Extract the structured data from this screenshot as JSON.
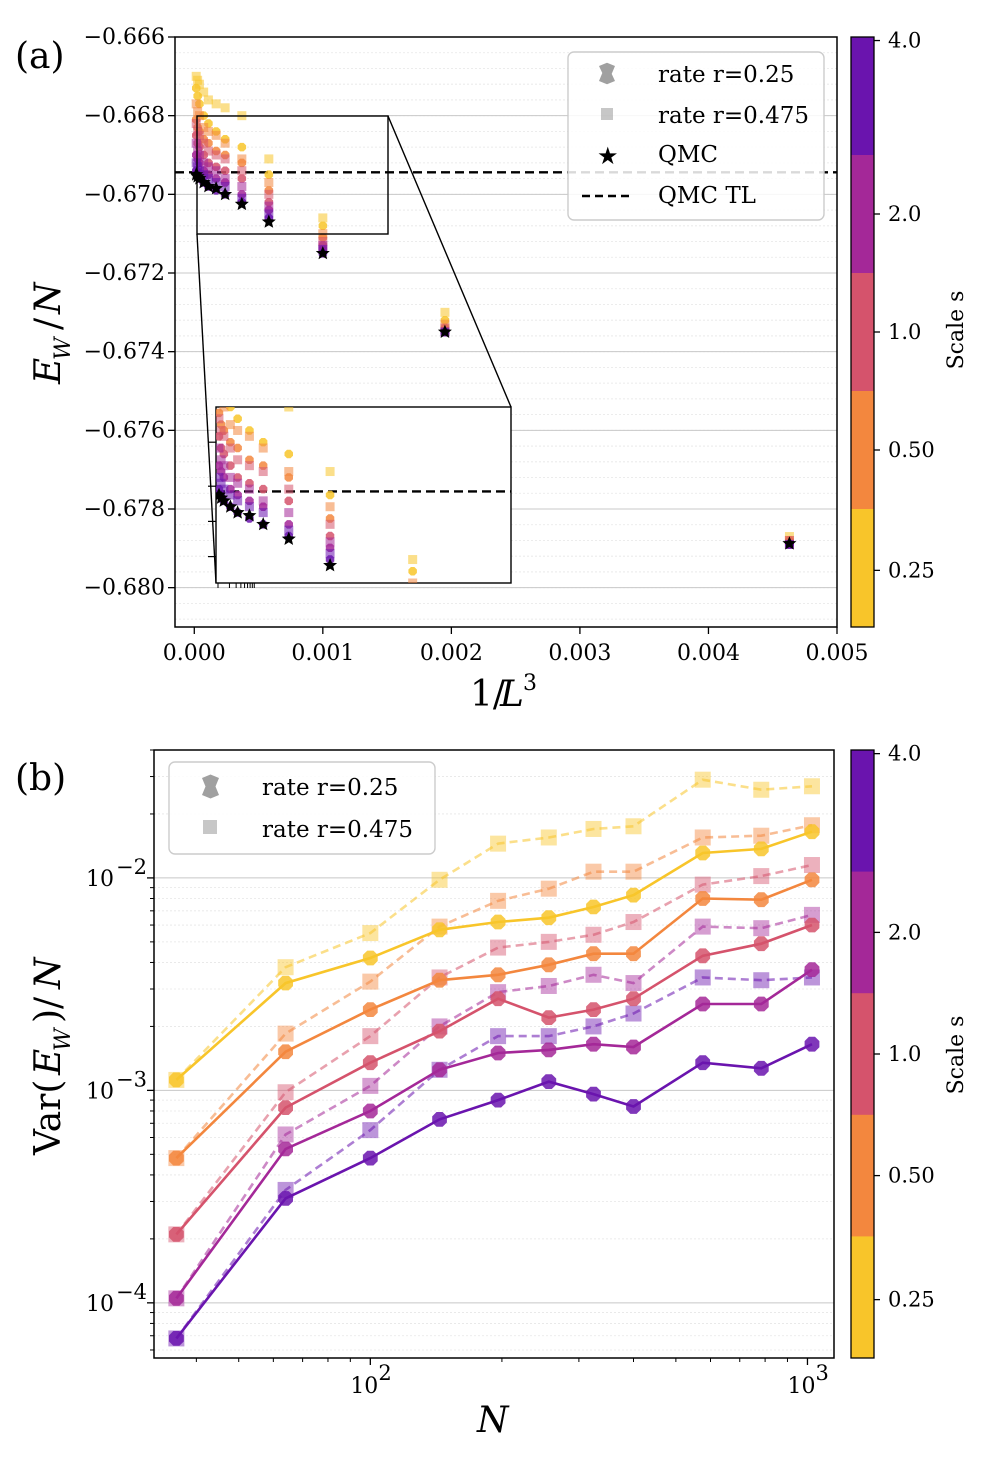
{
  "colors": {
    "scale_0.25": "#f8c52a",
    "scale_0.50": "#f3873e",
    "scale_1.0": "#d5536c",
    "scale_2.0": "#a42898",
    "scale_4.0": "#6a14ae",
    "qmc": "#000000"
  },
  "chart_data": [
    {
      "type": "scatter",
      "panel_label": "(a)",
      "xlabel": "1/L³",
      "ylabel": "E_W/N",
      "xlim": [
        -0.00015,
        0.005
      ],
      "ylim": [
        -0.681,
        -0.666
      ],
      "xticks": [
        "0.000",
        "0.001",
        "0.002",
        "0.003",
        "0.004",
        "0.005"
      ],
      "yticks": [
        "−0.666",
        "−0.668",
        "−0.670",
        "−0.672",
        "−0.674",
        "−0.676",
        "−0.678",
        "−0.680"
      ],
      "legend": [
        {
          "label": "rate r=0.25",
          "marker": "octagon"
        },
        {
          "label": "rate r=0.475",
          "marker": "square"
        },
        {
          "label": "QMC",
          "marker": "star"
        },
        {
          "label": "QMC TL",
          "marker": "dashed-line"
        }
      ],
      "qmc_tl": -0.66944,
      "x": [
        1.5e-05,
        2.6e-05,
        4e-05,
        7.3e-05,
        0.00011,
        0.00017,
        0.00024,
        0.00037,
        0.00058,
        0.001,
        0.00195,
        0.00463
      ],
      "qmc": [
        -0.6695,
        -0.66955,
        -0.6696,
        -0.6697,
        -0.6698,
        -0.66985,
        -0.67,
        -0.67025,
        -0.6707,
        -0.6715,
        -0.6735,
        -0.67888
      ],
      "series": [
        {
          "name": "r=0.475 s=0.25",
          "values": [
            -0.667,
            -0.6671,
            -0.6672,
            -0.6674,
            -0.6676,
            -0.6677,
            -0.6678,
            -0.668,
            -0.6691,
            -0.6706,
            -0.673,
            -0.6787
          ]
        },
        {
          "name": "r=0.25 s=0.25",
          "values": [
            -0.6673,
            -0.6675,
            -0.6677,
            -0.668,
            -0.6682,
            -0.6684,
            -0.6686,
            -0.6688,
            -0.6695,
            -0.6708,
            -0.6732,
            -0.6788
          ]
        },
        {
          "name": "r=0.475 s=0.50",
          "values": [
            -0.6677,
            -0.6679,
            -0.668,
            -0.6683,
            -0.6684,
            -0.6685,
            -0.6687,
            -0.6691,
            -0.6697,
            -0.671,
            -0.6733,
            -0.6788
          ]
        },
        {
          "name": "r=0.25 s=0.50",
          "values": [
            -0.6681,
            -0.6683,
            -0.6684,
            -0.6686,
            -0.6687,
            -0.6689,
            -0.669,
            -0.6692,
            -0.6699,
            -0.6711,
            -0.6734,
            -0.6788
          ]
        },
        {
          "name": "r=0.475 s=1.0",
          "values": [
            -0.6682,
            -0.6684,
            -0.6685,
            -0.6687,
            -0.6689,
            -0.669,
            -0.6691,
            -0.6694,
            -0.67,
            -0.6712,
            -0.6734,
            -0.6788
          ]
        },
        {
          "name": "r=0.25 s=1.0",
          "values": [
            -0.6685,
            -0.6687,
            -0.6688,
            -0.669,
            -0.6692,
            -0.6693,
            -0.6694,
            -0.6696,
            -0.6702,
            -0.6713,
            -0.6735,
            -0.6789
          ]
        },
        {
          "name": "r=0.475 s=2.0",
          "values": [
            -0.6687,
            -0.6689,
            -0.669,
            -0.6692,
            -0.6693,
            -0.6694,
            -0.6696,
            -0.6698,
            -0.6703,
            -0.6713,
            -0.6735,
            -0.6789
          ]
        },
        {
          "name": "r=0.25 s=2.0",
          "values": [
            -0.669,
            -0.6691,
            -0.6692,
            -0.6694,
            -0.6695,
            -0.6696,
            -0.6697,
            -0.67,
            -0.6704,
            -0.6714,
            -0.6735,
            -0.6789
          ]
        },
        {
          "name": "r=0.475 s=4.0",
          "values": [
            -0.6692,
            -0.6693,
            -0.6694,
            -0.6695,
            -0.6696,
            -0.6697,
            -0.6698,
            -0.6701,
            -0.6705,
            -0.6714,
            -0.6735,
            -0.6789
          ]
        },
        {
          "name": "r=0.25 s=4.0",
          "values": [
            -0.6694,
            -0.6695,
            -0.6696,
            -0.6697,
            -0.6698,
            -0.6699,
            -0.67,
            -0.6702,
            -0.6706,
            -0.6715,
            -0.6735,
            -0.6789
          ]
        }
      ],
      "inset": {
        "xlim": [
          0.0,
          0.0015
        ],
        "ylim": [
          -0.671,
          -0.668
        ]
      }
    },
    {
      "type": "line",
      "panel_label": "(b)",
      "xlabel": "N",
      "ylabel": "Var(E_W)/N",
      "xscale": "log",
      "yscale": "log",
      "xlim": [
        32,
        1150
      ],
      "ylim": [
        5.5e-05,
        0.04
      ],
      "xticks": [
        "10",
        "10"
      ],
      "xtick_exponents": [
        "2",
        "3"
      ],
      "yticks": [
        "10",
        "10",
        "10"
      ],
      "ytick_exponents": [
        "−2",
        "−3",
        "−4"
      ],
      "legend": [
        {
          "label": "rate r=0.25",
          "marker": "octagon"
        },
        {
          "label": "rate r=0.475",
          "marker": "square"
        }
      ],
      "x": [
        36,
        64,
        100,
        144,
        196,
        256,
        324,
        400,
        576,
        784,
        1024
      ],
      "series": [
        {
          "name": "r=0.475 s=0.25",
          "values": [
            0.00112,
            0.0038,
            0.0055,
            0.0098,
            0.0145,
            0.0155,
            0.017,
            0.0175,
            0.029,
            0.026,
            0.027
          ]
        },
        {
          "name": "r=0.475 s=0.50",
          "values": [
            0.00048,
            0.00185,
            0.00325,
            0.0059,
            0.0078,
            0.0089,
            0.0107,
            0.0107,
            0.0155,
            0.0158,
            0.0177
          ]
        },
        {
          "name": "r=0.475 s=1.0",
          "values": [
            0.00021,
            0.00098,
            0.0018,
            0.0034,
            0.0047,
            0.005,
            0.0054,
            0.0062,
            0.0093,
            0.0102,
            0.0115
          ]
        },
        {
          "name": "r=0.475 s=2.0",
          "values": [
            0.000105,
            0.00062,
            0.00105,
            0.002,
            0.0029,
            0.0031,
            0.0035,
            0.0032,
            0.0059,
            0.0058,
            0.0067
          ]
        },
        {
          "name": "r=0.475 s=4.0",
          "values": [
            6.8e-05,
            0.00034,
            0.00065,
            0.00125,
            0.0018,
            0.0018,
            0.002,
            0.0023,
            0.0034,
            0.0033,
            0.0034
          ]
        },
        {
          "name": "r=0.25 s=0.25",
          "values": [
            0.00112,
            0.0032,
            0.0042,
            0.0057,
            0.0062,
            0.0065,
            0.0073,
            0.0083,
            0.0131,
            0.0137,
            0.0165
          ]
        },
        {
          "name": "r=0.25 s=0.50",
          "values": [
            0.00048,
            0.00152,
            0.0024,
            0.0033,
            0.0035,
            0.0039,
            0.0044,
            0.0044,
            0.008,
            0.0079,
            0.0098
          ]
        },
        {
          "name": "r=0.25 s=1.0",
          "values": [
            0.00021,
            0.00083,
            0.00135,
            0.0019,
            0.0027,
            0.0022,
            0.0024,
            0.0027,
            0.0043,
            0.0049,
            0.006
          ]
        },
        {
          "name": "r=0.25 s=2.0",
          "values": [
            0.000105,
            0.00053,
            0.0008,
            0.00125,
            0.0015,
            0.00155,
            0.00165,
            0.0016,
            0.00255,
            0.00255,
            0.0037
          ]
        },
        {
          "name": "r=0.25 s=4.0",
          "values": [
            6.8e-05,
            0.00031,
            0.00048,
            0.00073,
            0.0009,
            0.0011,
            0.00096,
            0.00084,
            0.00135,
            0.00127,
            0.00165
          ]
        }
      ]
    }
  ],
  "colorbar": {
    "label": "Scale s",
    "ticks": [
      "4.0",
      "2.0",
      "1.0",
      "0.50",
      "0.25"
    ]
  }
}
